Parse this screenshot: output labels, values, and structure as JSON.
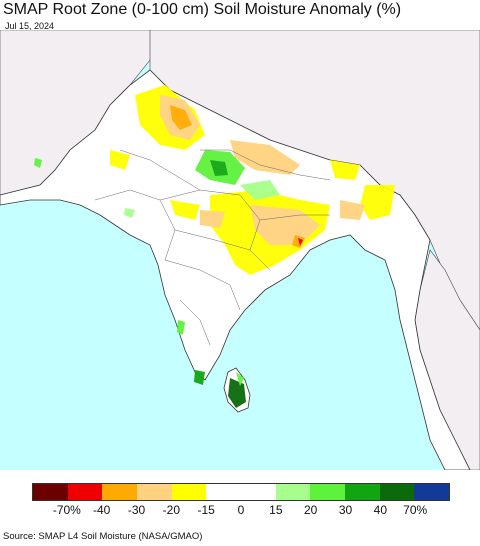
{
  "header": {
    "title": "SMAP Root Zone (0-100 cm) Soil Moisture Anomaly (%)",
    "date": "Jul 15, 2024"
  },
  "map": {
    "ocean_color": "#c6ffff",
    "land_color": "#ffffff",
    "outside_land_color": "#f2eef2"
  },
  "legend": {
    "colors": [
      "#6b0000",
      "#ee0000",
      "#ffaa00",
      "#ffd27f",
      "#ffff00",
      "#ffffff",
      "#ffffff",
      "#a6ff8c",
      "#5ef23c",
      "#11a611",
      "#0b6b0b",
      "#113a99"
    ],
    "labels": [
      "-70%",
      "-40",
      "-30",
      "-20",
      "-15",
      "0",
      "15",
      "20",
      "30",
      "40",
      "70%"
    ]
  },
  "footer": {
    "source": "Source: SMAP L4 Soil Moisture (NASA/GMAO)"
  }
}
